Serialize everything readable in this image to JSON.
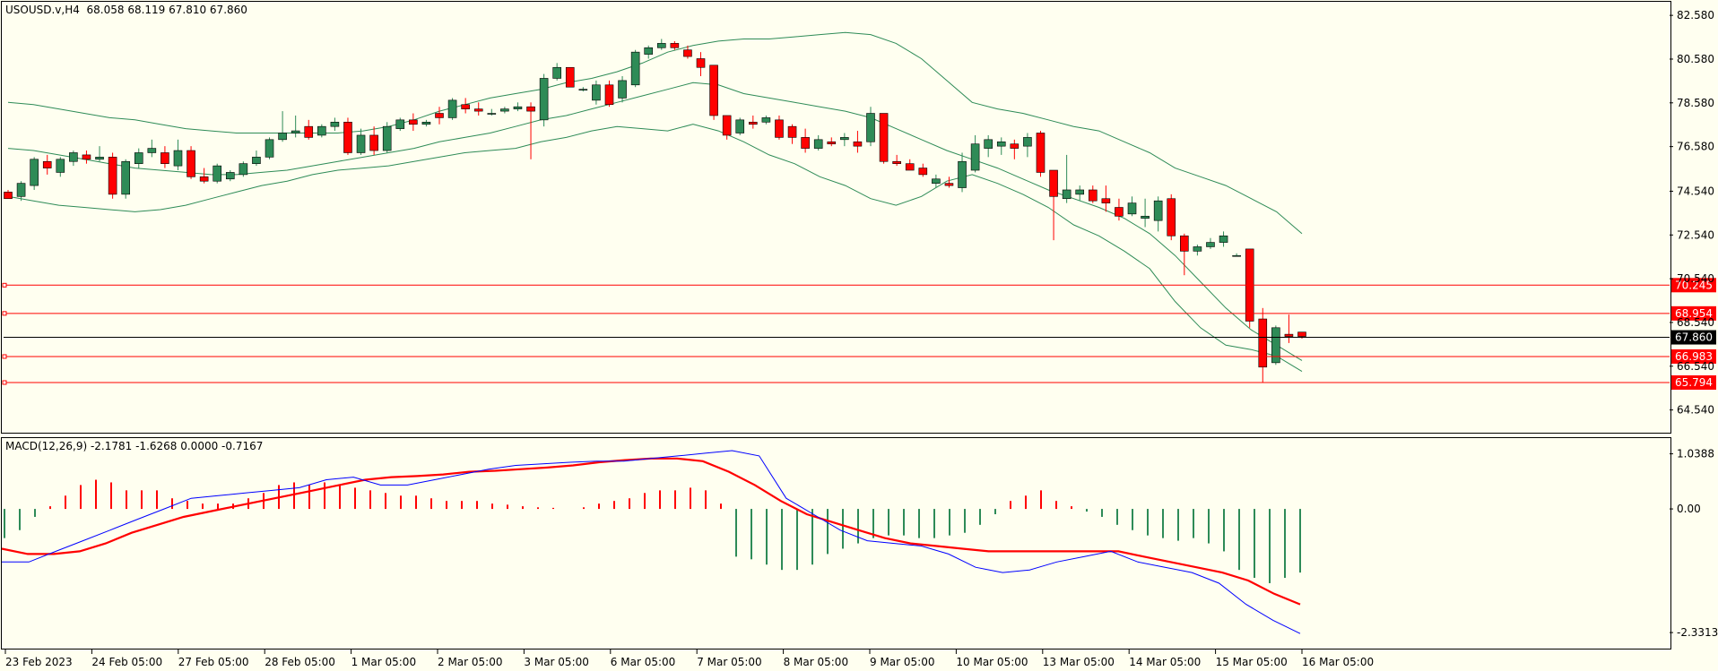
{
  "header": {
    "symbol": "USOUSD.v,H4",
    "ohlc": "68.058 68.119 67.810 67.860"
  },
  "macd_header": {
    "label": "MACD(12,26,9)",
    "values": "-2.1781 -1.6268 0.0000 -0.7167"
  },
  "colors": {
    "background": "#fffff0",
    "bull": "#2e8b57",
    "bear": "#ff0000",
    "bands": "#2e8b57",
    "hlines": "#ff0000",
    "price_line": "#000000",
    "macd_main": "#0000ff",
    "macd_signal": "#ff0000"
  },
  "chart_data": {
    "type": "candlestick",
    "price_axis": {
      "ticks": [
        "82.580",
        "80.580",
        "78.580",
        "76.580",
        "74.540",
        "72.540",
        "70.540",
        "68.540",
        "66.540",
        "64.540"
      ],
      "range": [
        63.5,
        83.2
      ]
    },
    "time_axis": [
      "23 Feb 2023",
      "24 Feb 05:00",
      "27 Feb 05:00",
      "28 Feb 05:00",
      "1 Mar 05:00",
      "2 Mar 05:00",
      "3 Mar 05:00",
      "6 Mar 05:00",
      "7 Mar 05:00",
      "8 Mar 05:00",
      "9 Mar 05:00",
      "10 Mar 05:00",
      "13 Mar 05:00",
      "14 Mar 05:00",
      "15 Mar 05:00",
      "16 Mar 05:00"
    ],
    "current_price": "67.860",
    "horizontal_lines": [
      "70.245",
      "68.954",
      "66.983",
      "65.794"
    ],
    "candles": [
      [
        74.5,
        74.6,
        74.2,
        74.2
      ],
      [
        74.3,
        75.0,
        74.1,
        74.9
      ],
      [
        74.8,
        76.1,
        74.6,
        76.0
      ],
      [
        75.9,
        76.2,
        75.3,
        75.6
      ],
      [
        75.4,
        76.1,
        75.2,
        76.0
      ],
      [
        75.9,
        76.4,
        75.7,
        76.3
      ],
      [
        76.2,
        76.4,
        75.8,
        76.0
      ],
      [
        76.0,
        76.6,
        75.9,
        76.1
      ],
      [
        76.1,
        76.3,
        74.2,
        74.4
      ],
      [
        74.4,
        76.0,
        74.2,
        75.9
      ],
      [
        75.8,
        76.5,
        75.6,
        76.3
      ],
      [
        76.3,
        76.9,
        76.1,
        76.5
      ],
      [
        76.3,
        76.6,
        75.6,
        75.8
      ],
      [
        75.7,
        76.9,
        75.5,
        76.4
      ],
      [
        76.4,
        76.6,
        75.1,
        75.2
      ],
      [
        75.2,
        75.6,
        74.9,
        75.0
      ],
      [
        75.0,
        75.8,
        74.9,
        75.7
      ],
      [
        75.1,
        75.5,
        75.0,
        75.4
      ],
      [
        75.3,
        75.9,
        75.2,
        75.8
      ],
      [
        75.8,
        76.4,
        75.7,
        76.1
      ],
      [
        76.1,
        77.0,
        76.0,
        76.9
      ],
      [
        76.9,
        78.2,
        76.8,
        77.2
      ],
      [
        77.2,
        78.0,
        77.0,
        77.3
      ],
      [
        77.5,
        77.8,
        76.9,
        77.0
      ],
      [
        77.1,
        77.6,
        77.0,
        77.5
      ],
      [
        77.5,
        77.9,
        77.3,
        77.7
      ],
      [
        77.7,
        77.9,
        76.2,
        76.3
      ],
      [
        76.3,
        77.4,
        76.2,
        77.1
      ],
      [
        77.1,
        77.5,
        76.2,
        76.4
      ],
      [
        76.4,
        77.7,
        76.3,
        77.5
      ],
      [
        77.4,
        77.9,
        77.3,
        77.8
      ],
      [
        77.8,
        78.1,
        77.3,
        77.6
      ],
      [
        77.6,
        77.8,
        77.5,
        77.7
      ],
      [
        78.1,
        78.4,
        77.6,
        77.9
      ],
      [
        77.9,
        78.8,
        77.8,
        78.7
      ],
      [
        78.5,
        78.8,
        78.1,
        78.3
      ],
      [
        78.3,
        78.6,
        78.0,
        78.2
      ],
      [
        78.1,
        78.3,
        78.0,
        78.1
      ],
      [
        78.2,
        78.4,
        78.1,
        78.3
      ],
      [
        78.3,
        78.6,
        78.2,
        78.4
      ],
      [
        78.4,
        78.6,
        76.0,
        78.2
      ],
      [
        77.8,
        79.9,
        77.5,
        79.7
      ],
      [
        79.7,
        80.4,
        79.6,
        80.2
      ],
      [
        80.2,
        80.2,
        79.3,
        79.3
      ],
      [
        79.2,
        79.3,
        79.1,
        79.2
      ],
      [
        78.7,
        79.6,
        78.5,
        79.4
      ],
      [
        79.4,
        79.6,
        78.4,
        78.5
      ],
      [
        78.8,
        79.8,
        78.6,
        79.6
      ],
      [
        79.4,
        81.0,
        79.3,
        80.9
      ],
      [
        80.8,
        81.2,
        80.6,
        81.1
      ],
      [
        81.1,
        81.5,
        81.0,
        81.3
      ],
      [
        81.3,
        81.4,
        81.0,
        81.1
      ],
      [
        81.0,
        81.2,
        80.6,
        80.7
      ],
      [
        80.6,
        80.9,
        79.8,
        80.2
      ],
      [
        80.3,
        80.3,
        77.8,
        78.0
      ],
      [
        78.0,
        78.0,
        76.9,
        77.1
      ],
      [
        77.2,
        77.9,
        77.1,
        77.8
      ],
      [
        77.7,
        78.0,
        77.4,
        77.6
      ],
      [
        77.7,
        78.0,
        77.6,
        77.9
      ],
      [
        77.8,
        78.0,
        76.9,
        77.0
      ],
      [
        77.5,
        77.6,
        76.7,
        77.0
      ],
      [
        77.0,
        77.4,
        76.3,
        76.5
      ],
      [
        76.5,
        77.1,
        76.4,
        76.9
      ],
      [
        76.8,
        77.0,
        76.6,
        76.7
      ],
      [
        76.9,
        77.2,
        76.6,
        77.0
      ],
      [
        76.8,
        77.3,
        76.3,
        76.6
      ],
      [
        76.8,
        78.4,
        76.6,
        78.1
      ],
      [
        78.1,
        78.1,
        75.8,
        75.9
      ],
      [
        75.9,
        76.2,
        75.7,
        75.8
      ],
      [
        75.8,
        76.0,
        75.5,
        75.5
      ],
      [
        75.6,
        75.8,
        75.2,
        75.3
      ],
      [
        74.9,
        75.3,
        74.7,
        75.1
      ],
      [
        74.9,
        75.2,
        74.7,
        74.8
      ],
      [
        74.7,
        76.3,
        74.5,
        75.9
      ],
      [
        75.5,
        77.1,
        75.4,
        76.7
      ],
      [
        76.5,
        77.1,
        76.1,
        76.9
      ],
      [
        76.6,
        77.0,
        76.2,
        76.8
      ],
      [
        76.7,
        76.9,
        76.0,
        76.5
      ],
      [
        76.6,
        77.2,
        76.1,
        77.0
      ],
      [
        77.2,
        77.3,
        75.2,
        75.4
      ],
      [
        75.5,
        75.5,
        72.3,
        74.3
      ],
      [
        74.2,
        76.2,
        74.0,
        74.6
      ],
      [
        74.4,
        74.8,
        74.1,
        74.6
      ],
      [
        74.6,
        74.8,
        74.0,
        74.1
      ],
      [
        74.2,
        74.8,
        73.6,
        74.0
      ],
      [
        73.8,
        74.2,
        73.2,
        73.4
      ],
      [
        73.5,
        74.3,
        73.4,
        74.0
      ],
      [
        73.3,
        74.2,
        72.9,
        73.4
      ],
      [
        73.2,
        74.3,
        72.7,
        74.1
      ],
      [
        74.2,
        74.4,
        72.3,
        72.5
      ],
      [
        72.5,
        72.6,
        70.7,
        71.8
      ],
      [
        71.8,
        72.1,
        71.6,
        72.0
      ],
      [
        72.0,
        72.4,
        71.9,
        72.2
      ],
      [
        72.2,
        72.7,
        72.0,
        72.5
      ],
      [
        71.6,
        71.7,
        71.6,
        71.6
      ],
      [
        71.9,
        71.9,
        68.3,
        68.6
      ],
      [
        68.7,
        69.2,
        65.8,
        66.5
      ],
      [
        66.7,
        68.4,
        66.6,
        68.3
      ],
      [
        68.0,
        68.9,
        67.6,
        67.9
      ],
      [
        68.1,
        68.1,
        67.8,
        67.9
      ]
    ],
    "bollinger": {
      "upper": [
        78.6,
        78.5,
        78.3,
        78.1,
        77.9,
        77.8,
        77.6,
        77.4,
        77.3,
        77.2,
        77.2,
        77.2,
        77.2,
        77.2,
        77.3,
        77.5,
        77.8,
        78.2,
        78.5,
        78.8,
        79.0,
        79.2,
        79.5,
        79.7,
        80.0,
        80.4,
        80.9,
        81.2,
        81.4,
        81.5,
        81.5,
        81.6,
        81.7,
        81.8,
        81.7,
        81.3,
        80.6,
        79.6,
        78.6,
        78.3,
        78.1,
        77.8,
        77.5,
        77.3,
        76.8,
        76.3,
        75.6,
        75.2,
        74.8,
        74.2,
        73.6,
        72.6
      ],
      "middle": [
        76.5,
        76.4,
        76.2,
        76.0,
        75.8,
        75.6,
        75.5,
        75.4,
        75.3,
        75.3,
        75.4,
        75.5,
        75.7,
        75.9,
        76.1,
        76.3,
        76.5,
        76.8,
        77.0,
        77.2,
        77.5,
        77.8,
        78.0,
        78.3,
        78.6,
        78.9,
        79.2,
        79.5,
        79.4,
        79.0,
        78.8,
        78.6,
        78.4,
        78.2,
        77.9,
        77.4,
        76.9,
        76.4,
        76.0,
        75.6,
        75.1,
        74.6,
        74.2,
        73.8,
        73.3,
        72.6,
        71.6,
        70.4,
        69.2,
        68.2,
        67.5,
        66.8
      ],
      "lower": [
        74.3,
        74.1,
        73.9,
        73.8,
        73.7,
        73.6,
        73.7,
        73.9,
        74.2,
        74.5,
        74.8,
        75.0,
        75.3,
        75.5,
        75.6,
        75.7,
        75.9,
        76.1,
        76.3,
        76.4,
        76.5,
        76.8,
        77.0,
        77.3,
        77.5,
        77.4,
        77.3,
        77.6,
        77.3,
        76.8,
        76.2,
        75.8,
        75.2,
        74.8,
        74.2,
        73.9,
        74.3,
        75.0,
        75.3,
        74.9,
        74.4,
        73.8,
        73.0,
        72.5,
        71.8,
        71.0,
        69.5,
        68.3,
        67.5,
        67.3,
        67.0,
        66.3
      ]
    },
    "macd": {
      "axis_ticks": [
        "1.0388",
        "0.00",
        "-2.3313"
      ],
      "range": [
        -2.6,
        1.15
      ],
      "histogram": [
        -0.55,
        -0.4,
        -0.15,
        0.05,
        0.25,
        0.45,
        0.55,
        0.5,
        0.35,
        0.35,
        0.35,
        0.2,
        0.15,
        0.1,
        0.1,
        0.1,
        0.2,
        0.3,
        0.45,
        0.5,
        0.45,
        0.5,
        0.45,
        0.4,
        0.35,
        0.3,
        0.25,
        0.25,
        0.2,
        0.15,
        0.15,
        0.15,
        0.1,
        0.08,
        0.05,
        0.03,
        0.02,
        0.0,
        0.03,
        0.1,
        0.15,
        0.2,
        0.3,
        0.35,
        0.35,
        0.4,
        0.35,
        0.1,
        -0.9,
        -0.95,
        -1.05,
        -1.15,
        -1.15,
        -1.05,
        -0.85,
        -0.75,
        -0.65,
        -0.55,
        -0.5,
        -0.5,
        -0.55,
        -0.55,
        -0.5,
        -0.45,
        -0.3,
        -0.1,
        0.15,
        0.25,
        0.35,
        0.15,
        0.05,
        -0.05,
        -0.15,
        -0.3,
        -0.4,
        -0.5,
        -0.55,
        -0.6,
        -0.55,
        -0.65,
        -0.8,
        -1.15,
        -1.3,
        -1.4,
        -1.3,
        -1.2
      ],
      "main_line": [
        -1.0,
        -1.0,
        -0.8,
        -0.6,
        -0.4,
        -0.2,
        0.0,
        0.2,
        0.25,
        0.3,
        0.35,
        0.4,
        0.55,
        0.6,
        0.45,
        0.45,
        0.55,
        0.65,
        0.75,
        0.82,
        0.85,
        0.88,
        0.9,
        0.9,
        0.95,
        1.0,
        1.05,
        1.1,
        1.0,
        0.2,
        -0.1,
        -0.4,
        -0.6,
        -0.65,
        -0.7,
        -0.85,
        -1.1,
        -1.2,
        -1.15,
        -1.0,
        -0.9,
        -0.8,
        -1.0,
        -1.1,
        -1.2,
        -1.4,
        -1.8,
        -2.1,
        -2.35
      ],
      "signal_line": [
        -0.75,
        -0.85,
        -0.85,
        -0.8,
        -0.65,
        -0.45,
        -0.3,
        -0.15,
        -0.05,
        0.05,
        0.15,
        0.25,
        0.35,
        0.45,
        0.55,
        0.6,
        0.62,
        0.65,
        0.7,
        0.72,
        0.75,
        0.78,
        0.82,
        0.88,
        0.92,
        0.95,
        0.95,
        0.9,
        0.7,
        0.45,
        0.15,
        -0.1,
        -0.25,
        -0.4,
        -0.55,
        -0.65,
        -0.7,
        -0.75,
        -0.8,
        -0.8,
        -0.8,
        -0.8,
        -0.8,
        -0.8,
        -0.9,
        -1.0,
        -1.1,
        -1.2,
        -1.35,
        -1.6,
        -1.8
      ]
    }
  }
}
